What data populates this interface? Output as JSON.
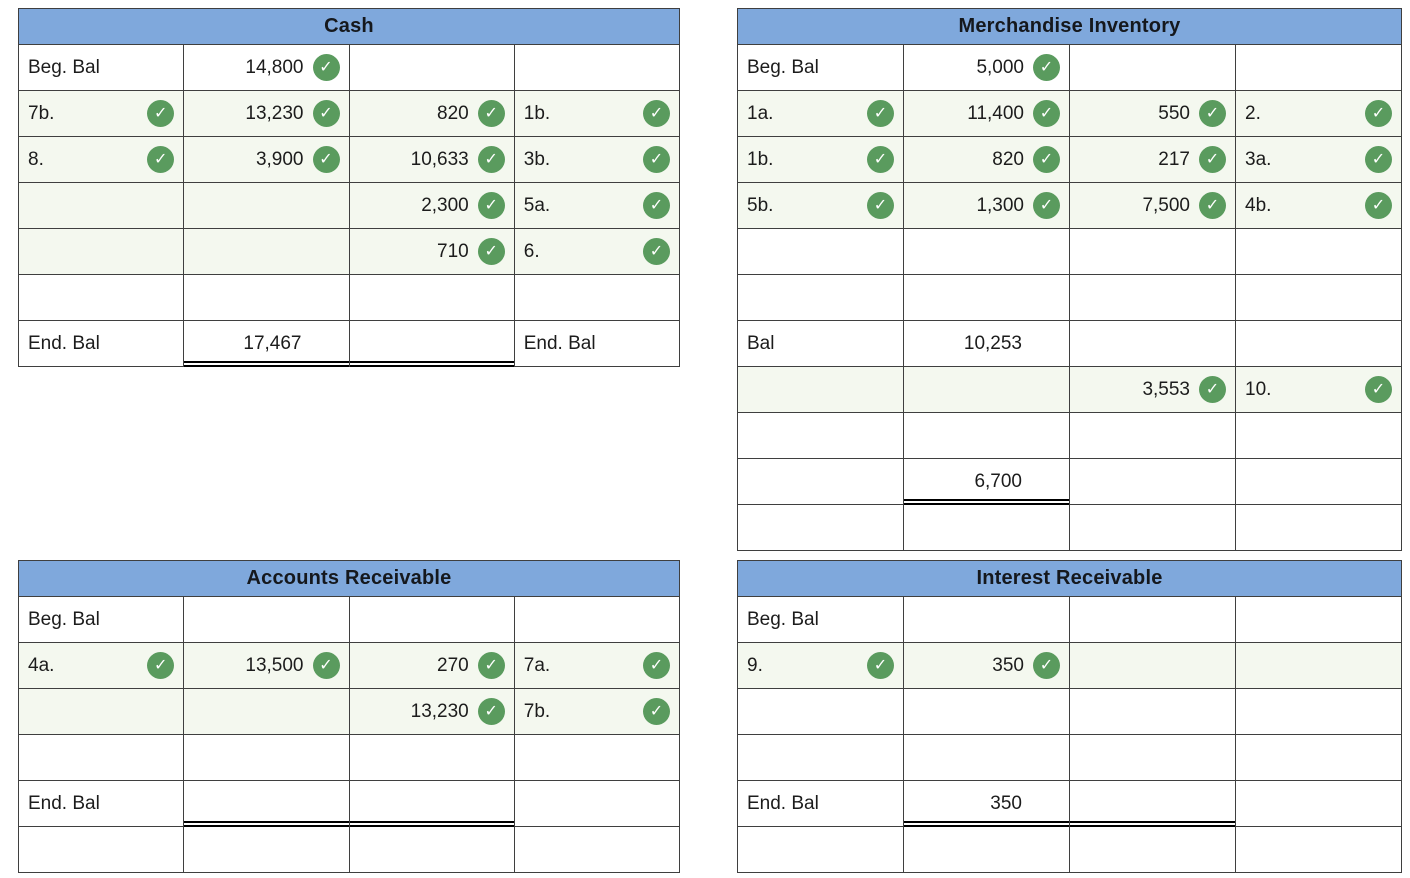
{
  "palette": {
    "header_bg": "#7fa8dc",
    "header_text": "#15181d",
    "tint": "#f4f8ef",
    "check_bg": "#5a9b5e",
    "border": "#3f3f3f",
    "rule": "#000000",
    "check_glyph": "✓"
  },
  "accounts": [
    {
      "id": "cash",
      "title": "Cash",
      "rows": [
        {
          "cells": [
            {
              "text": "Beg. Bal"
            },
            {
              "text": "14,800",
              "check": true
            },
            {},
            {}
          ]
        },
        {
          "tint": true,
          "cells": [
            {
              "text": "7b.",
              "check": true
            },
            {
              "text": "13,230",
              "check": true
            },
            {
              "text": "820",
              "check": true
            },
            {
              "text": "1b.",
              "check": true
            }
          ]
        },
        {
          "tint": true,
          "cells": [
            {
              "text": "8.",
              "check": true
            },
            {
              "text": "3,900",
              "check": true
            },
            {
              "text": "10,633",
              "check": true
            },
            {
              "text": "3b.",
              "check": true
            }
          ]
        },
        {
          "tint": true,
          "cells": [
            {},
            {},
            {
              "text": "2,300",
              "check": true
            },
            {
              "text": "5a.",
              "check": true
            }
          ]
        },
        {
          "tint": true,
          "cells": [
            {},
            {},
            {
              "text": "710",
              "check": true
            },
            {
              "text": "6.",
              "check": true
            }
          ]
        },
        {
          "cells": [
            {},
            {},
            {},
            {}
          ]
        },
        {
          "cells": [
            {
              "text": "End. Bal"
            },
            {
              "text": "17,467",
              "rule": true
            },
            {
              "rule": true
            },
            {
              "text": "End. Bal"
            }
          ]
        }
      ]
    },
    {
      "id": "merchandise-inventory",
      "title": "Merchandise Inventory",
      "rows": [
        {
          "cells": [
            {
              "text": "Beg. Bal"
            },
            {
              "text": "5,000",
              "check": true
            },
            {},
            {}
          ]
        },
        {
          "tint": true,
          "cells": [
            {
              "text": "1a.",
              "check": true
            },
            {
              "text": "11,400",
              "check": true
            },
            {
              "text": "550",
              "check": true
            },
            {
              "text": "2.",
              "check": true
            }
          ]
        },
        {
          "tint": true,
          "cells": [
            {
              "text": "1b.",
              "check": true
            },
            {
              "text": "820",
              "check": true
            },
            {
              "text": "217",
              "check": true
            },
            {
              "text": "3a.",
              "check": true
            }
          ]
        },
        {
          "tint": true,
          "cells": [
            {
              "text": "5b.",
              "check": true
            },
            {
              "text": "1,300",
              "check": true
            },
            {
              "text": "7,500",
              "check": true
            },
            {
              "text": "4b.",
              "check": true
            }
          ]
        },
        {
          "cells": [
            {},
            {},
            {},
            {}
          ]
        },
        {
          "cells": [
            {},
            {},
            {},
            {}
          ]
        },
        {
          "cells": [
            {
              "text": "Bal"
            },
            {
              "text": "10,253"
            },
            {},
            {}
          ]
        },
        {
          "tint": true,
          "cells": [
            {},
            {},
            {
              "text": "3,553",
              "check": true
            },
            {
              "text": "10.",
              "check": true
            }
          ]
        },
        {
          "cells": [
            {},
            {},
            {},
            {}
          ]
        },
        {
          "cells": [
            {},
            {
              "text": "6,700",
              "rule": true
            },
            {},
            {}
          ]
        },
        {
          "cells": [
            {},
            {},
            {},
            {}
          ]
        }
      ]
    },
    {
      "id": "accounts-receivable",
      "title": "Accounts Receivable",
      "rows": [
        {
          "cells": [
            {
              "text": "Beg. Bal"
            },
            {},
            {},
            {}
          ]
        },
        {
          "tint": true,
          "cells": [
            {
              "text": "4a.",
              "check": true
            },
            {
              "text": "13,500",
              "check": true
            },
            {
              "text": "270",
              "check": true
            },
            {
              "text": "7a.",
              "check": true
            }
          ]
        },
        {
          "tint": true,
          "cells": [
            {},
            {},
            {
              "text": "13,230",
              "check": true
            },
            {
              "text": "7b.",
              "check": true
            }
          ]
        },
        {
          "cells": [
            {},
            {},
            {},
            {}
          ]
        },
        {
          "cells": [
            {
              "text": "End. Bal"
            },
            {
              "rule": true
            },
            {
              "rule": true
            },
            {}
          ]
        },
        {
          "cells": [
            {},
            {},
            {},
            {}
          ]
        }
      ]
    },
    {
      "id": "interest-receivable",
      "title": "Interest Receivable",
      "rows": [
        {
          "cells": [
            {
              "text": "Beg. Bal"
            },
            {},
            {},
            {}
          ]
        },
        {
          "tint": true,
          "cells": [
            {
              "text": "9.",
              "check": true
            },
            {
              "text": "350",
              "check": true
            },
            {},
            {}
          ]
        },
        {
          "cells": [
            {},
            {},
            {},
            {}
          ]
        },
        {
          "cells": [
            {},
            {},
            {},
            {}
          ]
        },
        {
          "cells": [
            {
              "text": "End. Bal"
            },
            {
              "text": "350",
              "rule": true
            },
            {
              "rule": true
            },
            {}
          ]
        },
        {
          "cells": [
            {},
            {},
            {},
            {}
          ]
        }
      ]
    }
  ]
}
